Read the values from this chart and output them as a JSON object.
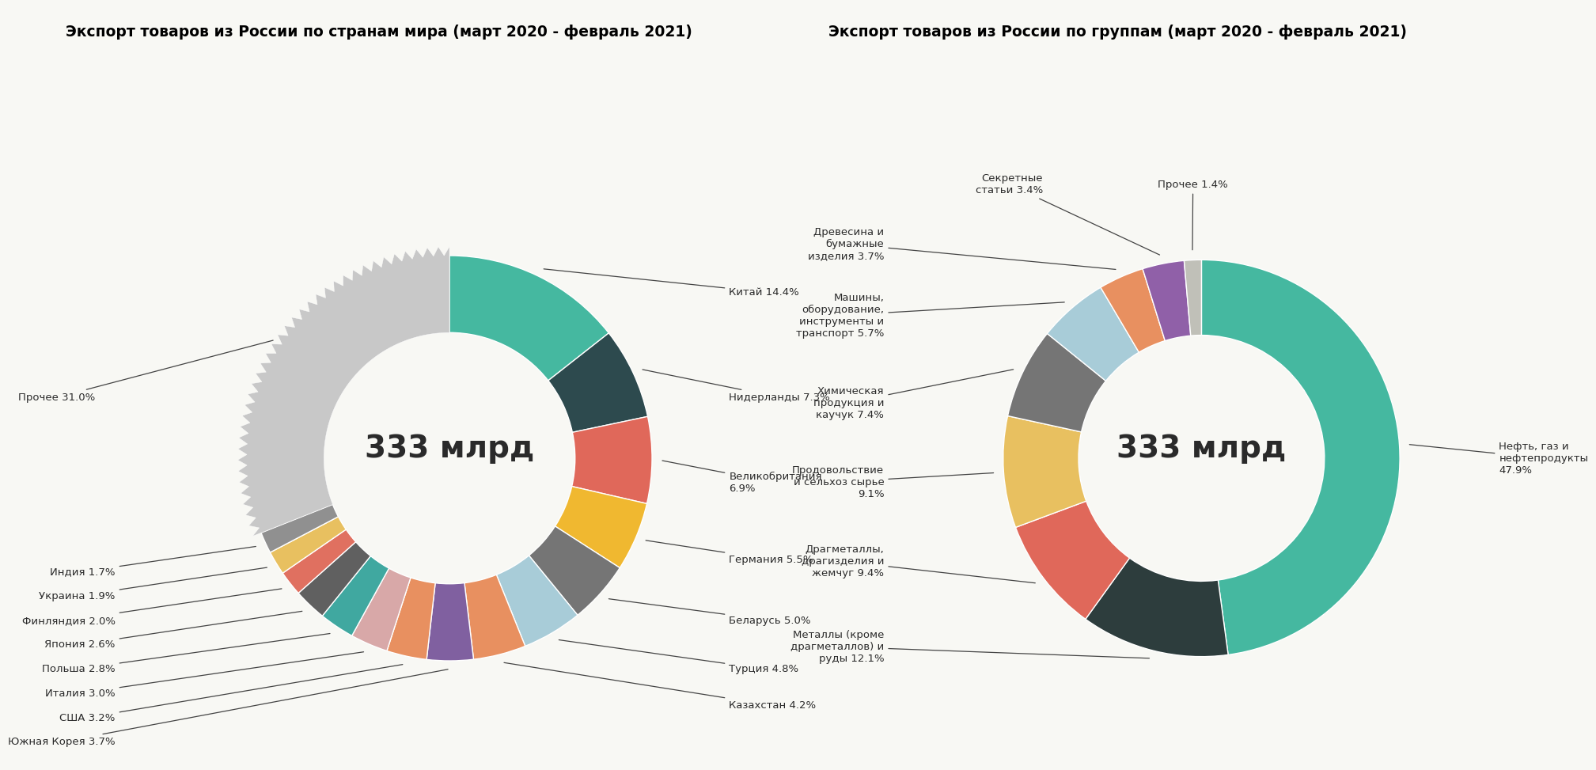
{
  "title_left": "Экспорт товаров из России по странам мира (март 2020 - февраль 2021)",
  "title_right": "Экспорт товаров из России по группам (март 2020 - февраль 2021)",
  "title_bg": "#F5C518",
  "center_text": "333 млрд",
  "bg_color": "#f8f8f4",
  "countries": [
    {
      "label": "Китай 14.4%",
      "value": 14.4,
      "color": "#45b8a0"
    },
    {
      "label": "Нидерланды 7.3%",
      "value": 7.3,
      "color": "#2d4a4e"
    },
    {
      "label": "Великобритания\n6.9%",
      "value": 6.9,
      "color": "#e0685a"
    },
    {
      "label": "Германия 5.5%",
      "value": 5.5,
      "color": "#f0b830"
    },
    {
      "label": "Беларусь 5.0%",
      "value": 5.0,
      "color": "#757575"
    },
    {
      "label": "Турция 4.8%",
      "value": 4.8,
      "color": "#a8ccd8"
    },
    {
      "label": "Казахстан 4.2%",
      "value": 4.2,
      "color": "#e89060"
    },
    {
      "label": "Южная Корея 3.7%",
      "value": 3.7,
      "color": "#8060a0"
    },
    {
      "label": "США 3.2%",
      "value": 3.2,
      "color": "#e89060"
    },
    {
      "label": "Италия 3.0%",
      "value": 3.0,
      "color": "#d8a8a8"
    },
    {
      "label": "Польша 2.8%",
      "value": 2.8,
      "color": "#40a8a0"
    },
    {
      "label": "Япония 2.6%",
      "value": 2.6,
      "color": "#606060"
    },
    {
      "label": "Финляндия 2.0%",
      "value": 2.0,
      "color": "#e07060"
    },
    {
      "label": "Украина 1.9%",
      "value": 1.9,
      "color": "#e8c060"
    },
    {
      "label": "Индия 1.7%",
      "value": 1.7,
      "color": "#909090"
    },
    {
      "label": "Прочее 31.0%",
      "value": 31.0,
      "color": "#c8c8c8",
      "serrated": true
    }
  ],
  "groups": [
    {
      "label": "Нефть, газ и\nнефтепродукты\n47.9%",
      "value": 47.9,
      "color": "#45b8a0"
    },
    {
      "label": "Металлы (кроме\nдрагметаллов) и\nруды 12.1%",
      "value": 12.1,
      "color": "#2d3d3d"
    },
    {
      "label": "Драгметаллы,\nдрагизделия и\nжемчуг 9.4%",
      "value": 9.4,
      "color": "#e0685a"
    },
    {
      "label": "Продовольствие\nи сельхоз сырье\n9.1%",
      "value": 9.1,
      "color": "#e8c060"
    },
    {
      "label": "Химическая\nпродукция и\nкаучук 7.4%",
      "value": 7.4,
      "color": "#757575"
    },
    {
      "label": "Машины,\nоборудование,\nинструменты и\nтранспорт 5.7%",
      "value": 5.7,
      "color": "#a8ccd8"
    },
    {
      "label": "Древесина и\nбумажные\nизделия 3.7%",
      "value": 3.7,
      "color": "#e89060"
    },
    {
      "label": "Секретные\nстатьи 3.4%",
      "value": 3.4,
      "color": "#9060a8"
    },
    {
      "label": "Прочее 1.4%",
      "value": 1.4,
      "color": "#c0c0b8"
    }
  ]
}
